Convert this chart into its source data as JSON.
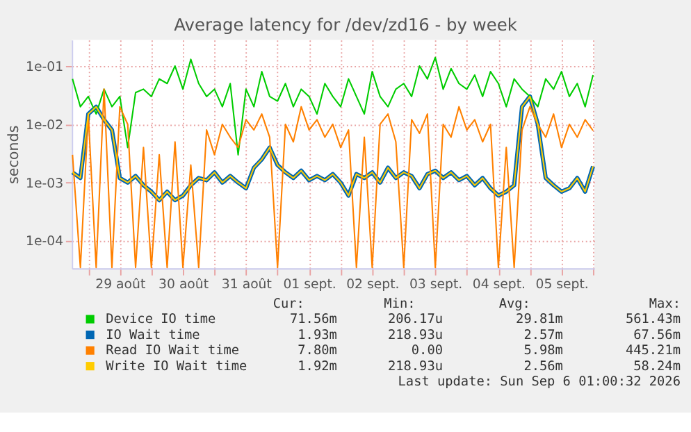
{
  "chart_data": {
    "type": "line",
    "title": "Average latency for /dev/zd16 - by week",
    "ylabel": "seconds",
    "log": true,
    "grid": true,
    "legend": "bottom",
    "marker": "none",
    "line_style": "solid",
    "ylim": [
      3.4e-05,
      0.28
    ],
    "yticks": [
      {
        "value": 0.0001,
        "label": "1e-04"
      },
      {
        "value": 0.001,
        "label": "1e-03"
      },
      {
        "value": 0.01,
        "label": "1e-02"
      },
      {
        "value": 0.1,
        "label": "1e-01"
      }
    ],
    "xlim": [
      "2026-08-28T17:45",
      "2026-09-06T00:30"
    ],
    "xticks": [
      {
        "value": "2026-08-29T00:00",
        "label": null
      },
      {
        "value": "2026-08-29T12:00",
        "label": "29 août"
      },
      {
        "value": "2026-08-30T00:00",
        "label": null
      },
      {
        "value": "2026-08-30T12:00",
        "label": "30 août"
      },
      {
        "value": "2026-08-31T00:00",
        "label": null
      },
      {
        "value": "2026-08-31T12:00",
        "label": "31 août"
      },
      {
        "value": "2026-09-01T00:00",
        "label": null
      },
      {
        "value": "2026-09-01T12:00",
        "label": "01 sept."
      },
      {
        "value": "2026-09-02T00:00",
        "label": null
      },
      {
        "value": "2026-09-02T12:00",
        "label": "02 sept."
      },
      {
        "value": "2026-09-03T00:00",
        "label": null
      },
      {
        "value": "2026-09-03T12:00",
        "label": "03 sept."
      },
      {
        "value": "2026-09-04T00:00",
        "label": null
      },
      {
        "value": "2026-09-04T12:00",
        "label": "04 sept."
      },
      {
        "value": "2026-09-05T00:00",
        "label": null
      },
      {
        "value": "2026-09-05T12:00",
        "label": "05 sept."
      },
      {
        "value": "2026-09-06T00:00",
        "label": null
      }
    ],
    "x": [
      "2026-08-28T18:00",
      "2026-08-28T21:00",
      "2026-08-29T00:00",
      "2026-08-29T03:00",
      "2026-08-29T06:00",
      "2026-08-29T09:00",
      "2026-08-29T12:00",
      "2026-08-29T15:00",
      "2026-08-29T18:00",
      "2026-08-29T21:00",
      "2026-08-30T00:00",
      "2026-08-30T03:00",
      "2026-08-30T06:00",
      "2026-08-30T09:00",
      "2026-08-30T12:00",
      "2026-08-30T15:00",
      "2026-08-30T18:00",
      "2026-08-30T21:00",
      "2026-08-31T00:00",
      "2026-08-31T03:00",
      "2026-08-31T06:00",
      "2026-08-31T09:00",
      "2026-08-31T12:00",
      "2026-08-31T15:00",
      "2026-08-31T18:00",
      "2026-08-31T21:00",
      "2026-09-01T00:00",
      "2026-09-01T03:00",
      "2026-09-01T06:00",
      "2026-09-01T09:00",
      "2026-09-01T12:00",
      "2026-09-01T15:00",
      "2026-09-01T18:00",
      "2026-09-01T21:00",
      "2026-09-02T00:00",
      "2026-09-02T03:00",
      "2026-09-02T06:00",
      "2026-09-02T09:00",
      "2026-09-02T12:00",
      "2026-09-02T15:00",
      "2026-09-02T18:00",
      "2026-09-02T21:00",
      "2026-09-03T00:00",
      "2026-09-03T03:00",
      "2026-09-03T06:00",
      "2026-09-03T09:00",
      "2026-09-03T12:00",
      "2026-09-03T15:00",
      "2026-09-03T18:00",
      "2026-09-03T21:00",
      "2026-09-04T00:00",
      "2026-09-04T03:00",
      "2026-09-04T06:00",
      "2026-09-04T09:00",
      "2026-09-04T12:00",
      "2026-09-04T15:00",
      "2026-09-04T18:00",
      "2026-09-04T21:00",
      "2026-09-05T00:00",
      "2026-09-05T03:00",
      "2026-09-05T06:00",
      "2026-09-05T09:00",
      "2026-09-05T12:00",
      "2026-09-05T15:00",
      "2026-09-05T18:00",
      "2026-09-05T21:00",
      "2026-09-06T00:00"
    ],
    "series": [
      {
        "name": "Device IO time",
        "color": "#00cc00",
        "values": [
          0.06,
          0.02,
          0.03,
          0.015,
          0.04,
          0.02,
          0.03,
          0.004,
          0.035,
          0.04,
          0.03,
          0.06,
          0.05,
          0.1,
          0.04,
          0.13,
          0.05,
          0.03,
          0.04,
          0.02,
          0.05,
          0.003,
          0.04,
          0.02,
          0.08,
          0.03,
          0.025,
          0.05,
          0.02,
          0.04,
          0.03,
          0.015,
          0.05,
          0.03,
          0.02,
          0.06,
          0.03,
          0.015,
          0.08,
          0.03,
          0.02,
          0.04,
          0.05,
          0.03,
          0.1,
          0.06,
          0.14,
          0.04,
          0.09,
          0.05,
          0.04,
          0.07,
          0.03,
          0.08,
          0.05,
          0.02,
          0.06,
          0.04,
          0.03,
          0.02,
          0.06,
          0.04,
          0.08,
          0.03,
          0.05,
          0.02,
          0.07
        ]
      },
      {
        "name": "IO Wait time",
        "color": "#0066b3",
        "values": [
          0.0015,
          0.0012,
          0.015,
          0.02,
          0.012,
          0.008,
          0.0012,
          0.001,
          0.0013,
          0.0009,
          0.0007,
          0.0005,
          0.0007,
          0.0005,
          0.0006,
          0.0009,
          0.0012,
          0.0011,
          0.0015,
          0.001,
          0.0013,
          0.001,
          0.0008,
          0.0018,
          0.0025,
          0.004,
          0.002,
          0.0015,
          0.0012,
          0.0016,
          0.0011,
          0.0013,
          0.0011,
          0.0014,
          0.001,
          0.0006,
          0.0014,
          0.0012,
          0.0015,
          0.001,
          0.0018,
          0.0012,
          0.0015,
          0.0013,
          0.0008,
          0.0014,
          0.0016,
          0.0012,
          0.0015,
          0.0011,
          0.0013,
          0.0009,
          0.0012,
          0.0008,
          0.0006,
          0.0007,
          0.0009,
          0.02,
          0.03,
          0.01,
          0.0012,
          0.0009,
          0.0007,
          0.0008,
          0.0012,
          0.0007,
          0.0019
        ]
      },
      {
        "name": "Read IO Wait time",
        "color": "#ff8000",
        "values": [
          0.003,
          3.5e-05,
          0.015,
          3.5e-05,
          0.04,
          3.5e-05,
          0.02,
          0.01,
          3.5e-05,
          0.004,
          3.5e-05,
          0.003,
          3.5e-05,
          0.005,
          3.5e-05,
          0.002,
          3.5e-05,
          0.008,
          0.003,
          0.01,
          0.006,
          0.004,
          0.012,
          0.008,
          0.015,
          0.006,
          3.5e-05,
          0.01,
          0.005,
          0.02,
          0.008,
          0.012,
          0.006,
          0.01,
          0.004,
          0.008,
          3.5e-05,
          0.006,
          3.5e-05,
          0.01,
          0.015,
          0.005,
          3.5e-05,
          0.012,
          0.007,
          0.015,
          3.5e-05,
          0.01,
          0.006,
          0.02,
          0.008,
          0.012,
          0.005,
          0.01,
          3.5e-05,
          0.004,
          3.5e-05,
          0.008,
          0.02,
          0.01,
          0.006,
          0.015,
          0.004,
          0.01,
          0.006,
          0.012,
          0.0078
        ]
      },
      {
        "name": "Write IO Wait time",
        "color": "#ffcc00",
        "values": [
          0.0015,
          0.0012,
          0.015,
          0.02,
          0.012,
          0.008,
          0.0012,
          0.001,
          0.0013,
          0.0009,
          0.0007,
          0.0005,
          0.0007,
          0.0005,
          0.0006,
          0.0009,
          0.0012,
          0.0011,
          0.0015,
          0.001,
          0.0013,
          0.001,
          0.0008,
          0.0018,
          0.0025,
          0.004,
          0.002,
          0.0015,
          0.0012,
          0.0016,
          0.0011,
          0.0013,
          0.0011,
          0.0014,
          0.001,
          0.0006,
          0.0014,
          0.0012,
          0.0015,
          0.001,
          0.0018,
          0.0012,
          0.0015,
          0.0013,
          0.0008,
          0.0014,
          0.0016,
          0.0012,
          0.0015,
          0.0011,
          0.0013,
          0.0009,
          0.0012,
          0.0008,
          0.0006,
          0.0007,
          0.0009,
          0.02,
          0.03,
          0.01,
          0.0012,
          0.0009,
          0.0007,
          0.0008,
          0.0012,
          0.0007,
          0.0019
        ]
      }
    ],
    "annotations": [
      "Cur:",
      "Min:",
      "Avg:",
      "Max:",
      "71.56m",
      "206.17u",
      "29.81m",
      "561.43m",
      "1.93m",
      "218.93u",
      "2.57m",
      "67.56m",
      "7.80m",
      "0.00",
      "5.98m",
      "445.21m",
      "1.92m",
      "218.93u",
      "2.56m",
      "58.24m",
      "Last update: Sun Sep  6 01:00:32 2026"
    ]
  }
}
